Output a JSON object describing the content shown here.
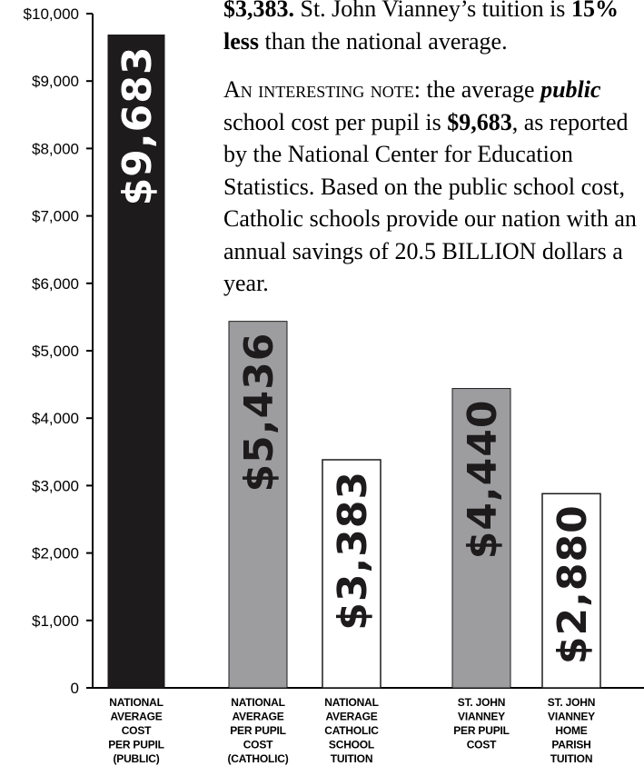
{
  "chart_data": {
    "type": "bar",
    "categories": [
      [
        "NATIONAL",
        "AVERAGE",
        "COST",
        "PER PUPIL",
        "(PUBLIC)"
      ],
      [
        "NATIONAL",
        "AVERAGE",
        "PER PUPIL",
        "COST",
        "(CATHOLIC)"
      ],
      [
        "NATIONAL",
        "AVERAGE",
        "CATHOLIC",
        "SCHOOL",
        "TUITION"
      ],
      [
        "ST. JOHN",
        "VIANNEY",
        "PER PUPIL",
        "COST"
      ],
      [
        "ST. JOHN",
        "VIANNEY",
        "HOME",
        "PARISH",
        "TUITION"
      ]
    ],
    "values": [
      9683,
      5436,
      3383,
      4440,
      2880
    ],
    "value_labels": [
      "$9,683",
      "$5,436",
      "$3,383",
      "$4,440",
      "$2,880"
    ],
    "bar_colors": [
      "#1e1b1c",
      "#9d9d9f",
      "#ffffff",
      "#9d9d9f",
      "#ffffff"
    ],
    "label_colors": [
      "#ffffff",
      "#1e1b1c",
      "#1e1b1c",
      "#1e1b1c",
      "#1e1b1c"
    ],
    "ylim": [
      0,
      10000
    ],
    "yticks": [
      0,
      1000,
      2000,
      3000,
      4000,
      5000,
      6000,
      7000,
      8000,
      9000,
      10000
    ],
    "ytick_labels": [
      "0",
      "$1,000",
      "$2,000",
      "$3,000",
      "$4,000",
      "$5,000",
      "$6,000",
      "$7,000",
      "$8,000",
      "$9,000",
      "$10,000"
    ],
    "grid": false
  },
  "note": {
    "p1_bold1": "$3,383.",
    "p1_text1": " St. John Vianney’s tuition is ",
    "p1_bold2": "15% less",
    "p1_text2": " than the national average.",
    "p2_smallcaps": "An interesting note",
    "p2_text1": ": the average ",
    "p2_emph": "public",
    "p2_text2": " school cost per pupil is ",
    "p2_bold": "$9,683",
    "p2_text3": ", as reported by the National Center for Education Statistics. Based on the public school cost, Catholic schools provide our nation with an annual savings of 20.5 BILLION dollars a year."
  }
}
